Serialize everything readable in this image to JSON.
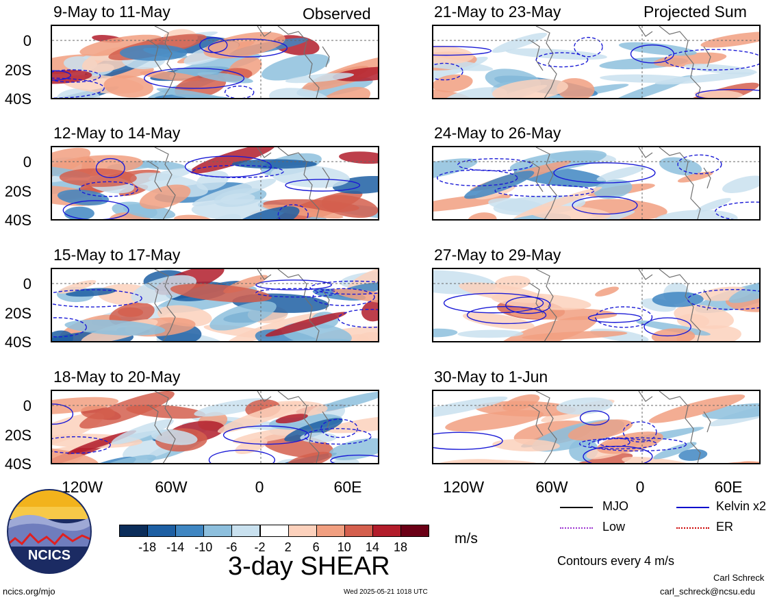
{
  "header": {
    "left": "Observed",
    "right": "Projected Sum"
  },
  "panels": [
    {
      "title": "9-May to 11-May",
      "column": "observed"
    },
    {
      "title": "12-May to 14-May",
      "column": "observed"
    },
    {
      "title": "15-May to 17-May",
      "column": "observed"
    },
    {
      "title": "18-May to 20-May",
      "column": "observed"
    },
    {
      "title": "21-May to 23-May",
      "column": "projected"
    },
    {
      "title": "24-May to 26-May",
      "column": "projected"
    },
    {
      "title": "27-May to 29-May",
      "column": "projected"
    },
    {
      "title": "30-May to 1-Jun",
      "column": "projected"
    }
  ],
  "axes": {
    "y_ticks": [
      "0",
      "20S",
      "40S"
    ],
    "x_ticks": [
      "120W",
      "60W",
      "0",
      "60E"
    ]
  },
  "legend": {
    "items": [
      {
        "label": "MJO",
        "color": "#000000",
        "style": "solid"
      },
      {
        "label": "Kelvin x2",
        "color": "#0000cc",
        "style": "solid"
      },
      {
        "label": "Low",
        "color": "#9b30d0",
        "style": "dotted"
      },
      {
        "label": "ER",
        "color": "#cc0000",
        "style": "dotted"
      }
    ],
    "contour_note": "Contours every 4 m/s"
  },
  "colorbar": {
    "title": "3-day SHEAR",
    "unit": "m/s",
    "ticks": [
      "-18",
      "-14",
      "-10",
      "-6",
      "-2",
      "2",
      "6",
      "10",
      "14",
      "18"
    ],
    "colors": [
      "#0b2d5a",
      "#1d5fa3",
      "#3f86c2",
      "#8dbfdd",
      "#c9e1ef",
      "#ffffff",
      "#fcd1bc",
      "#f19f80",
      "#d45f4d",
      "#b21d2b",
      "#6b0016"
    ]
  },
  "logo": {
    "text": "NCICS"
  },
  "footer": {
    "url": "ncics.org/mjo",
    "timestamp": "Wed 2025-05-21 1018 UTC",
    "author": "Carl Schreck",
    "email": "carl_schreck@ncsu.edu"
  }
}
